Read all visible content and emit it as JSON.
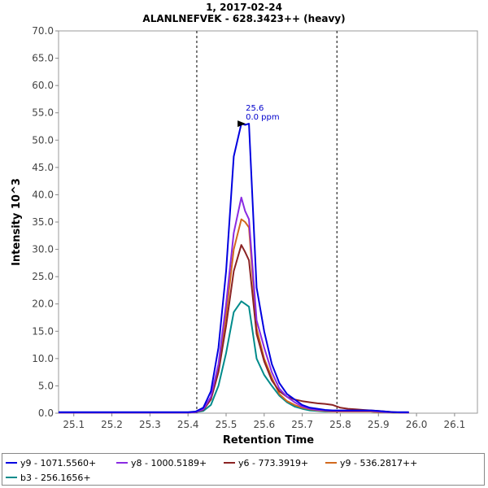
{
  "chart_data": {
    "type": "line",
    "title": "1, 2017-02-24",
    "subtitle": "ALANLNEFVEK - 628.3423++ (heavy)",
    "xlabel": "Retention Time",
    "ylabel": "Intensity 10^3",
    "xlim": [
      25.06,
      26.16
    ],
    "ylim": [
      0,
      70
    ],
    "x_ticks": [
      "25.1",
      "25.2",
      "25.3",
      "25.4",
      "25.5",
      "25.6",
      "25.7",
      "25.8",
      "25.9",
      "26.0",
      "26.1"
    ],
    "y_ticks": [
      "0.0",
      "5.0",
      "10.0",
      "15.0",
      "20.0",
      "25.0",
      "30.0",
      "35.0",
      "40.0",
      "45.0",
      "50.0",
      "55.0",
      "60.0",
      "65.0",
      "70.0"
    ],
    "grid": false,
    "legend_position": "bottom",
    "boundaries": [
      25.423,
      25.791
    ],
    "peak_annotation": {
      "x": 25.56,
      "y": 53.0,
      "label_rt": "25.6",
      "label_ppm": "0.0 ppm"
    },
    "x": [
      25.06,
      25.2,
      25.4,
      25.42,
      25.44,
      25.46,
      25.48,
      25.5,
      25.52,
      25.54,
      25.55,
      25.56,
      25.58,
      25.6,
      25.62,
      25.64,
      25.66,
      25.68,
      25.7,
      25.72,
      25.74,
      25.76,
      25.78,
      25.8,
      25.82,
      25.84,
      25.86,
      25.88,
      25.9,
      25.92,
      25.94,
      25.96,
      25.98
    ],
    "series": [
      {
        "name": "y9 - 1071.5560+",
        "color": "#0000e0",
        "values": [
          0.2,
          0.2,
          0.2,
          0.3,
          1.0,
          4.0,
          12.0,
          26.0,
          47.0,
          53.0,
          52.8,
          53.0,
          23.0,
          15.0,
          9.0,
          5.5,
          3.5,
          2.5,
          1.5,
          1.0,
          0.8,
          0.6,
          0.5,
          0.5,
          0.5,
          0.5,
          0.5,
          0.5,
          0.4,
          0.3,
          0.2,
          0.2,
          0.2
        ]
      },
      {
        "name": "y8 - 1000.5189+",
        "color": "#8a2be2",
        "values": [
          0.1,
          0.1,
          0.1,
          0.2,
          0.7,
          3.0,
          9.0,
          20.0,
          33.0,
          39.5,
          37.0,
          35.5,
          17.0,
          12.0,
          7.5,
          4.5,
          3.0,
          2.0,
          1.2,
          0.8,
          0.6,
          0.5,
          0.4,
          0.4,
          0.4,
          0.4,
          0.4,
          0.4,
          0.3,
          0.2,
          0.2,
          0.1,
          0.1
        ]
      },
      {
        "name": "y6 - 773.3919+",
        "color": "#8b2323",
        "values": [
          0.1,
          0.1,
          0.1,
          0.2,
          0.6,
          2.5,
          7.5,
          16.0,
          26.0,
          30.8,
          29.5,
          28.0,
          14.5,
          9.5,
          6.0,
          4.0,
          3.0,
          2.5,
          2.2,
          2.0,
          1.8,
          1.7,
          1.5,
          1.0,
          0.8,
          0.7,
          0.6,
          0.5,
          0.4,
          0.3,
          0.2,
          0.1,
          0.1
        ]
      },
      {
        "name": "y9 - 536.2817++",
        "color": "#d2691e",
        "values": [
          0.1,
          0.1,
          0.1,
          0.2,
          0.7,
          2.8,
          8.5,
          18.0,
          30.0,
          35.5,
          35.0,
          34.0,
          15.5,
          10.0,
          6.5,
          3.5,
          2.2,
          1.5,
          1.0,
          0.7,
          0.5,
          0.4,
          0.3,
          0.3,
          0.3,
          0.3,
          0.3,
          0.3,
          0.2,
          0.2,
          0.1,
          0.1,
          0.1
        ]
      },
      {
        "name": "b3 - 256.1656+",
        "color": "#008b8b",
        "values": [
          0.1,
          0.1,
          0.1,
          0.2,
          0.4,
          1.5,
          5.0,
          11.0,
          18.5,
          20.5,
          20.0,
          19.5,
          10.0,
          7.0,
          5.0,
          3.2,
          2.0,
          1.2,
          0.8,
          0.5,
          0.4,
          0.3,
          0.3,
          0.3,
          0.3,
          0.3,
          0.3,
          0.3,
          0.2,
          0.2,
          0.1,
          0.1,
          0.1
        ]
      }
    ]
  }
}
